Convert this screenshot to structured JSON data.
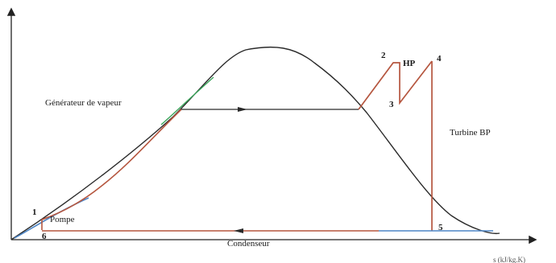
{
  "diagram": {
    "labels": {
      "steam_generator": "Générateur de vapeur",
      "hp": "HP",
      "turbine_bp": "Turbine BP",
      "pump": "Pompe",
      "condenser": "Condenseur",
      "axis_x": "s (kJ/kg.K)"
    },
    "points": {
      "p1": "1",
      "p2": "2",
      "p3": "3",
      "p4": "4",
      "p5": "5",
      "p6": "6"
    },
    "colors": {
      "saturation_dome": "#2a2a2a",
      "cycle": "#b5563f",
      "liquid_line": "#4f86c6",
      "vapor_overlay": "#3aa55a",
      "axis": "#222222"
    }
  }
}
